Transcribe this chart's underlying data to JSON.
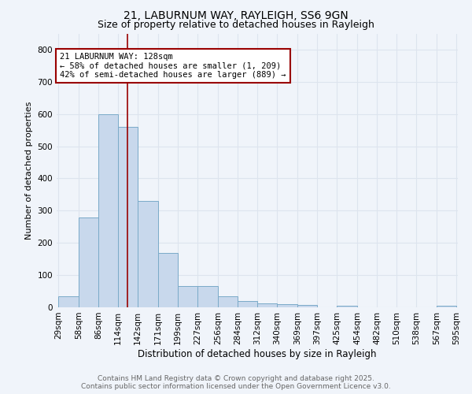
{
  "title1": "21, LABURNUM WAY, RAYLEIGH, SS6 9GN",
  "title2": "Size of property relative to detached houses in Rayleigh",
  "xlabel": "Distribution of detached houses by size in Rayleigh",
  "ylabel": "Number of detached properties",
  "bin_edges": [
    29,
    58,
    86,
    114,
    142,
    171,
    199,
    227,
    256,
    284,
    312,
    340,
    369,
    397,
    425,
    454,
    482,
    510,
    538,
    567,
    595
  ],
  "bar_heights": [
    35,
    280,
    600,
    560,
    330,
    170,
    65,
    65,
    35,
    20,
    12,
    10,
    8,
    0,
    5,
    0,
    0,
    0,
    0,
    5,
    0
  ],
  "bar_color": "#c8d8ec",
  "bar_edge_color": "#7aaac8",
  "property_line_x": 128,
  "property_line_color": "#990000",
  "annotation_text": "21 LABURNUM WAY: 128sqm\n← 58% of detached houses are smaller (1, 209)\n42% of semi-detached houses are larger (889) →",
  "annotation_box_edge_color": "#990000",
  "annotation_fontsize": 7.5,
  "ylim": [
    0,
    850
  ],
  "yticks": [
    0,
    100,
    200,
    300,
    400,
    500,
    600,
    700,
    800
  ],
  "background_color": "#f0f4fa",
  "grid_color": "#dde4ee",
  "footer_line1": "Contains HM Land Registry data © Crown copyright and database right 2025.",
  "footer_line2": "Contains public sector information licensed under the Open Government Licence v3.0.",
  "title1_fontsize": 10,
  "title2_fontsize": 9,
  "xlabel_fontsize": 8.5,
  "ylabel_fontsize": 8,
  "tick_fontsize": 7.5,
  "footer_fontsize": 6.5
}
